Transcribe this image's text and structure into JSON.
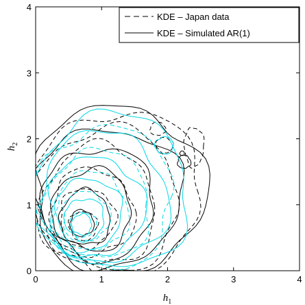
{
  "chart_data": {
    "type": "line",
    "chart_subtype": "bivariate KDE contour plot",
    "title": "",
    "xlabel": "h",
    "xlabel_subscript": "1",
    "ylabel": "h",
    "ylabel_subscript": "2",
    "xlim": [
      0,
      4
    ],
    "ylim": [
      0,
      4
    ],
    "xticks": [
      "0",
      "1",
      "2",
      "3",
      "4"
    ],
    "yticks": [
      "0",
      "1",
      "2",
      "3",
      "4"
    ],
    "grid": false,
    "legend_position": "top-right",
    "colors": {
      "axes": "#000000",
      "japan": "#000000",
      "simulated": "#000000",
      "cyan_levels": "#00d8e8"
    },
    "series": [
      {
        "name": "KDE – Japan data",
        "line_style": "dashed",
        "color": "#000000",
        "contours": [
          {
            "level": 1,
            "center": [
              0.72,
              0.68
            ],
            "rx": 0.22,
            "ry": 0.22
          },
          {
            "level": 2,
            "center": [
              0.78,
              0.8
            ],
            "rx": 0.42,
            "ry": 0.45
          },
          {
            "level": 3,
            "center": [
              0.85,
              0.88
            ],
            "rx": 0.64,
            "ry": 0.66
          },
          {
            "level": 4,
            "center": [
              0.95,
              0.98
            ],
            "rx": 0.86,
            "ry": 0.92
          },
          {
            "level": 5,
            "center": [
              1.08,
              1.08
            ],
            "rx": 1.1,
            "ry": 1.08
          },
          {
            "level": 6,
            "center": [
              1.25,
              1.18
            ],
            "rx": 1.27,
            "ry": 1.24
          }
        ],
        "islands": [
          {
            "center": [
              2.4,
              1.88
            ],
            "rx": 0.15,
            "ry": 0.3
          },
          {
            "center": [
              1.95,
              1.9
            ],
            "rx": 0.13,
            "ry": 0.12
          },
          {
            "center": [
              1.85,
              2.15
            ],
            "rx": 0.12,
            "ry": 0.1
          }
        ]
      },
      {
        "name": "KDE – Simulated AR(1)",
        "line_style": "solid",
        "color": "#000000",
        "contours": [
          {
            "level": 1,
            "center": [
              0.7,
              0.72
            ],
            "rx": 0.18,
            "ry": 0.2
          },
          {
            "level": 2,
            "center": [
              0.75,
              0.8
            ],
            "rx": 0.38,
            "ry": 0.42
          },
          {
            "level": 3,
            "center": [
              0.85,
              0.92
            ],
            "rx": 0.6,
            "ry": 0.62
          },
          {
            "level": 4,
            "center": [
              0.95,
              1.02
            ],
            "rx": 0.85,
            "ry": 0.85
          },
          {
            "level": 5,
            "center": [
              1.1,
              1.12
            ],
            "rx": 1.12,
            "ry": 1.05
          },
          {
            "level": 6,
            "center": [
              1.25,
              1.22
            ],
            "rx": 1.3,
            "ry": 1.28
          }
        ],
        "islands": [
          {
            "center": [
              2.25,
              1.65
            ],
            "rx": 0.1,
            "ry": 0.1
          },
          {
            "center": [
              2.22,
              1.78
            ],
            "rx": 0.035,
            "ry": 0.035
          }
        ]
      },
      {
        "name": "",
        "line_style": "solid",
        "color": "#00d8e8",
        "contours": [
          {
            "level": 1,
            "center": [
              0.7,
              0.7
            ],
            "rx": 0.15,
            "ry": 0.16
          },
          {
            "level": 2,
            "center": [
              0.74,
              0.78
            ],
            "rx": 0.3,
            "ry": 0.32
          },
          {
            "level": 3,
            "center": [
              0.8,
              0.86
            ],
            "rx": 0.5,
            "ry": 0.55
          },
          {
            "level": 4,
            "center": [
              0.9,
              0.96
            ],
            "rx": 0.74,
            "ry": 0.76
          },
          {
            "level": 5,
            "center": [
              1.02,
              1.1
            ],
            "rx": 0.98,
            "ry": 1.0
          },
          {
            "level": 6,
            "center": [
              1.15,
              1.2
            ],
            "rx": 1.18,
            "ry": 1.18
          }
        ],
        "islands": [
          {
            "center": [
              1.95,
              1.9
            ],
            "rx": 0.14,
            "ry": 0.13
          }
        ]
      },
      {
        "name": "",
        "line_style": "dashed",
        "color": "#00d8e8",
        "contours": [
          {
            "level": 1,
            "center": [
              0.72,
              0.7
            ],
            "rx": 0.2,
            "ry": 0.19
          },
          {
            "level": 2,
            "center": [
              0.76,
              0.82
            ],
            "rx": 0.36,
            "ry": 0.38
          },
          {
            "level": 3,
            "center": [
              0.84,
              0.9
            ],
            "rx": 0.56,
            "ry": 0.6
          },
          {
            "level": 4,
            "center": [
              0.94,
              1.0
            ],
            "rx": 0.8,
            "ry": 0.82
          },
          {
            "level": 5,
            "center": [
              1.05,
              1.12
            ],
            "rx": 1.04,
            "ry": 1.06
          }
        ],
        "islands": []
      }
    ]
  }
}
